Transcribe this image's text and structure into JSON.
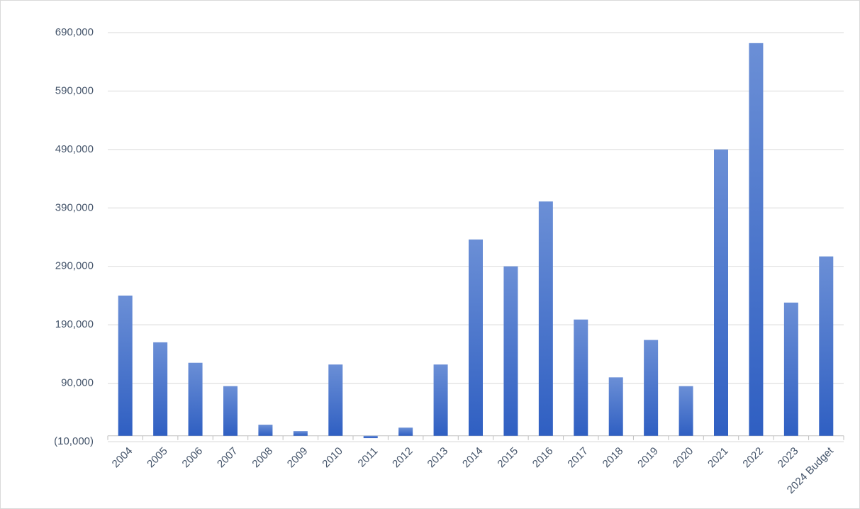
{
  "chart_data": {
    "type": "bar",
    "categories": [
      "2004",
      "2005",
      "2006",
      "2007",
      "2008",
      "2009",
      "2010",
      "2011",
      "2012",
      "2013",
      "2014",
      "2015",
      "2016",
      "2017",
      "2018",
      "2019",
      "2020",
      "2021",
      "2022",
      "2023",
      "2024 Budget"
    ],
    "values": [
      240000,
      160000,
      125000,
      85000,
      19000,
      8000,
      122000,
      -4000,
      14000,
      122000,
      336000,
      290000,
      401000,
      199000,
      100000,
      164000,
      85000,
      490000,
      672000,
      228000,
      307000
    ],
    "color": "#4472c4",
    "ylim": [
      -10000,
      690000
    ],
    "yticks": [
      {
        "value": -10000,
        "label": "(10,000)"
      },
      {
        "value": 90000,
        "label": "90,000"
      },
      {
        "value": 190000,
        "label": "190,000"
      },
      {
        "value": 290000,
        "label": "290,000"
      },
      {
        "value": 390000,
        "label": "390,000"
      },
      {
        "value": 490000,
        "label": "490,000"
      },
      {
        "value": 590000,
        "label": "590,000"
      },
      {
        "value": 690000,
        "label": "690,000"
      }
    ],
    "grid": true
  }
}
